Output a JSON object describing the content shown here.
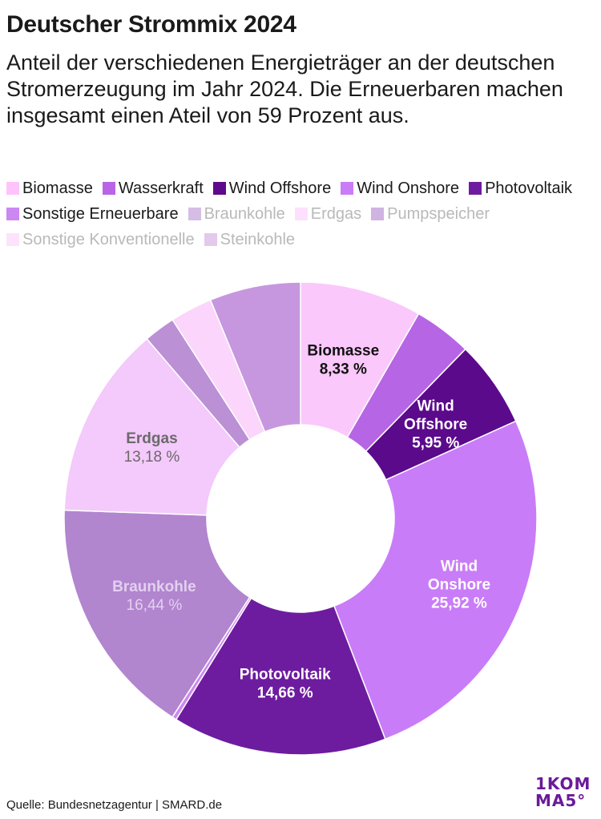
{
  "header": {
    "title": "Deutscher Strommix 2024",
    "subtitle": "Anteil der verschiedenen Energieträger an der deutschen Stromerzeugung im Jahr 2024. Die Erneuerbaren machen insgesamt einen Ateil von 59 Prozent aus."
  },
  "legend": [
    {
      "label": "Biomasse",
      "color": "#ffc3fb",
      "faded": false
    },
    {
      "label": "Wasserkraft",
      "color": "#b964e6",
      "faded": false
    },
    {
      "label": "Wind Offshore",
      "color": "#5e0a8c",
      "faded": false
    },
    {
      "label": "Wind Onshore",
      "color": "#c97cf7",
      "faded": false
    },
    {
      "label": "Photovoltaik",
      "color": "#6d1c9f",
      "faded": false
    },
    {
      "label": "Sonstige Erneuerbare",
      "color": "#cc88f2",
      "faded": false
    },
    {
      "label": "Braunkohle",
      "color": "#d6bde6",
      "faded": true
    },
    {
      "label": "Erdgas",
      "color": "#fde0fd",
      "faded": true
    },
    {
      "label": "Pumpspeicher",
      "color": "#cfb3e2",
      "faded": true
    },
    {
      "label": "Sonstige Konventionelle",
      "color": "#fce3fb",
      "faded": true
    },
    {
      "label": "Steinkohle",
      "color": "#e3c9ec",
      "faded": true
    }
  ],
  "chart_data": {
    "type": "pie",
    "subtype": "donut",
    "title": "Deutscher Strommix 2024",
    "unit": "%",
    "slices": [
      {
        "name": "Biomasse",
        "value": 8.33,
        "color": "#fbc8fb",
        "label_lines": [
          "Biomasse"
        ],
        "value_label": "8,33 %",
        "label_color": "#111111",
        "bold_value": true
      },
      {
        "name": "Wasserkraft",
        "value": 3.96,
        "color": "#b665e5"
      },
      {
        "name": "Wind Offshore",
        "value": 5.95,
        "color": "#5b0a8b",
        "label_lines": [
          "Wind",
          "Offshore"
        ],
        "value_label": "5,95 %",
        "label_color": "#ffffff",
        "bold_value": true
      },
      {
        "name": "Wind Onshore",
        "value": 25.92,
        "color": "#c97cf7",
        "label_lines": [
          "Wind",
          "Onshore"
        ],
        "value_label": "25,92 %",
        "label_color": "#ffffff",
        "bold_value": true
      },
      {
        "name": "Photovoltaik",
        "value": 14.66,
        "color": "#6d1c9f",
        "label_lines": [
          "Photovoltaik"
        ],
        "value_label": "14,66 %",
        "label_color": "#ffffff",
        "bold_value": true
      },
      {
        "name": "Sonstige Erneuerbare",
        "value": 0.3,
        "color": "#cc88f2"
      },
      {
        "name": "Braunkohle",
        "value": 16.44,
        "color": "#b285cf",
        "label_lines": [
          "Braunkohle"
        ],
        "value_label": "16,44 %",
        "label_color": "#e3d0ef",
        "bold_value": false
      },
      {
        "name": "Erdgas",
        "value": 13.18,
        "color": "#f4c9fb",
        "label_lines": [
          "Erdgas"
        ],
        "value_label": "13,18 %",
        "label_color": "#6a6a6a",
        "bold_value": false
      },
      {
        "name": "Pumpspeicher",
        "value": 2.15,
        "color": "#bb90d5"
      },
      {
        "name": "Sonstige Konventionelle",
        "value": 2.89,
        "color": "#fbd5fb"
      },
      {
        "name": "Steinkohle",
        "value": 6.22,
        "color": "#c697df"
      }
    ]
  },
  "footer": {
    "source": "Quelle: Bundesnetzagentur | SMARD.de"
  },
  "logo": {
    "line1": "1KOM",
    "line2": "MA5°"
  }
}
